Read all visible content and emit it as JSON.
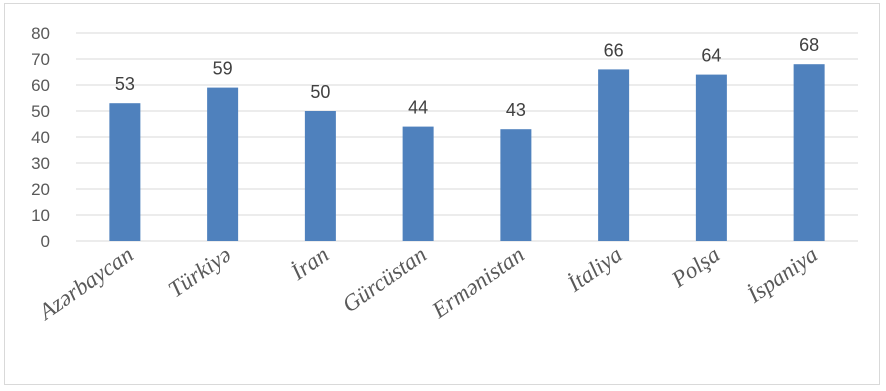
{
  "chart_data": {
    "type": "bar",
    "categories": [
      "Azərbaycan",
      "Türkiyə",
      "İran",
      "Gürcüstan",
      "Ermənistan",
      "İtaliya",
      "Polşa",
      "İspaniya"
    ],
    "values": [
      53,
      59,
      50,
      44,
      43,
      66,
      64,
      68
    ],
    "data_labels": [
      "53",
      "59",
      "50",
      "44",
      "43",
      "66",
      "64",
      "68"
    ],
    "y_ticks": [
      "0",
      "10",
      "20",
      "30",
      "40",
      "50",
      "60",
      "70",
      "80"
    ],
    "title": "",
    "xlabel": "",
    "ylabel": "",
    "ylim": [
      0,
      80
    ],
    "grid": true,
    "legend": "none",
    "bar_color": "#4f81bd",
    "grid_color": "#d9d9d9"
  }
}
